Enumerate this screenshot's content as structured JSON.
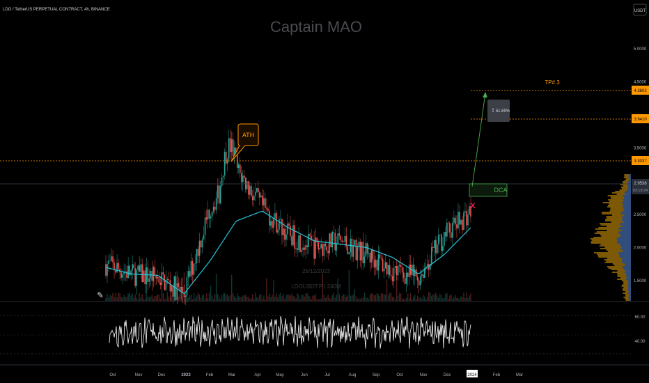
{
  "header": {
    "symbol_line": "LDO / TetherUS PERPETUAL CONTRACT, 4h, BINANCE",
    "watermark": "Captain MAO"
  },
  "price_axis": {
    "currency": "USDT",
    "ticks": [
      "5.0000",
      "4.5000",
      "3.5000",
      "3.0000",
      "2.5000",
      "2.0000",
      "1.5000"
    ],
    "ylim": [
      1.2,
      5.4
    ]
  },
  "osc_axis": {
    "ticks": [
      "60.00",
      "40.00"
    ]
  },
  "time_axis": {
    "ticks": [
      "Oct",
      "Nov",
      "Dec",
      "2023",
      "Feb",
      "Mar",
      "Apr",
      "May",
      "Jun",
      "Jul",
      "Aug",
      "Sep",
      "Oct",
      "Nov",
      "Dec",
      "2024",
      "Feb",
      "Mar"
    ],
    "highlight": "2024"
  },
  "price_labels": {
    "tp3": "4.3602",
    "tp2": "3.9410",
    "tp1": "3.3037",
    "last": "2.9538",
    "countdown": "03:19:24"
  },
  "annotations": {
    "ath": "ATH",
    "tp3": "TP# 3",
    "dca": "DCA",
    "measure": "51.69%",
    "cross": "X",
    "center_watermark_1": "25/12/2023",
    "center_watermark_2": "LDOUSDT.P | 240M"
  },
  "colors": {
    "background": "#000000",
    "up": "#26a69a",
    "down": "#ef5350",
    "ma": "#26c6da",
    "target": "#ff9800",
    "dca": "#4caf50",
    "oscillator": "#ffffff",
    "volume_profile": "#e6a20a",
    "volume_profile_blue": "#1e4a9a"
  },
  "chart_data": {
    "type": "line",
    "title": "",
    "xlabel": "",
    "ylabel": "",
    "x": [
      "Oct",
      "Nov",
      "Dec",
      "2023",
      "Feb",
      "Mar",
      "Apr",
      "May",
      "Jun",
      "Jul",
      "Aug",
      "Sep",
      "Oct",
      "Nov",
      "Dec"
    ],
    "ylim": [
      1.2,
      5.4
    ],
    "series": [
      {
        "values": [
          1.75,
          1.6,
          1.55,
          1.3,
          2.6,
          3.2,
          2.6,
          2.2,
          2.0,
          2.1,
          1.9,
          1.65,
          1.55,
          2.2,
          2.55
        ]
      },
      {
        "values": [
          1.7,
          1.6,
          1.58,
          1.3,
          1.8,
          2.4,
          2.55,
          2.3,
          2.1,
          2.05,
          2.0,
          1.85,
          1.6,
          1.9,
          2.3
        ]
      }
    ],
    "oscillator": {
      "ylim": [
        20,
        75
      ],
      "levels": [
        60,
        40
      ]
    },
    "targets": [
      4.3602,
      3.941,
      3.3037
    ],
    "last_price": 2.9538
  }
}
